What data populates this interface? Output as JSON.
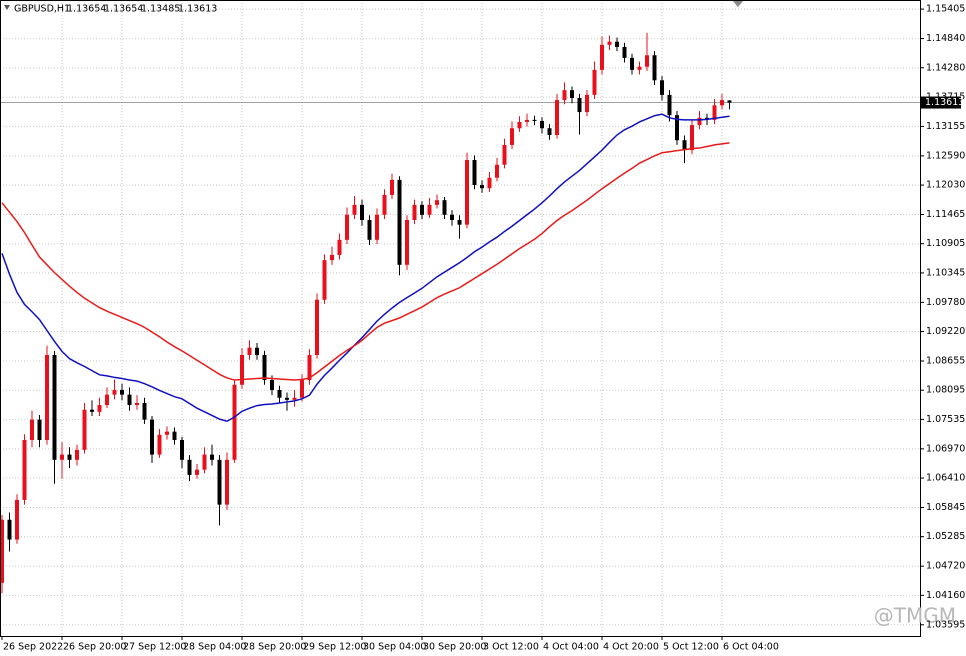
{
  "chart_data": {
    "type": "candlestick",
    "title": "GBPUSD,H1",
    "watermark": "@TMGM",
    "categories": [
      "26 Sep 2022",
      null,
      null,
      null,
      null,
      null,
      null,
      null,
      "26 Sep 20:00",
      null,
      null,
      null,
      null,
      null,
      null,
      null,
      "27 Sep 12:00",
      null,
      null,
      null,
      null,
      null,
      null,
      null,
      "28 Sep 04:00",
      null,
      null,
      null,
      null,
      null,
      null,
      null,
      "28 Sep 20:00",
      null,
      null,
      null,
      null,
      null,
      null,
      null,
      "29 Sep 12:00",
      null,
      null,
      null,
      null,
      null,
      null,
      null,
      "30 Sep 04:00",
      null,
      null,
      null,
      null,
      null,
      null,
      null,
      "30 Sep 20:00",
      null,
      null,
      null,
      null,
      null,
      null,
      null,
      "3 Oct 12:00",
      null,
      null,
      null,
      null,
      null,
      null,
      null,
      "4 Oct 04:00",
      null,
      null,
      null,
      null,
      null,
      null,
      null,
      "4 Oct 20:00",
      null,
      null,
      null,
      null,
      null,
      null,
      null,
      "5 Oct 12:00",
      null,
      null,
      null,
      null,
      null,
      null,
      null,
      "6 Oct 04:00",
      null
    ],
    "open": [
      1.044,
      1.0561,
      1.0523,
      1.0599,
      1.0714,
      1.0753,
      1.0714,
      1.0877,
      1.0676,
      1.0686,
      1.0676,
      1.0695,
      1.0772,
      1.0768,
      1.0781,
      1.0801,
      1.081,
      1.0801,
      1.0781,
      1.0785,
      1.0753,
      1.0686,
      1.0724,
      1.073,
      1.0714,
      1.0676,
      1.0647,
      1.0657,
      1.0686,
      1.0676,
      1.059,
      1.0676,
      1.082,
      1.0877,
      1.0891,
      1.0877,
      1.0829,
      1.081,
      1.0795,
      1.0791,
      1.0795,
      1.0829,
      1.0877,
      1.0983,
      1.1059,
      1.1069,
      1.1098,
      1.1146,
      1.1165,
      1.1136,
      1.1098,
      1.1146,
      1.1184,
      1.1213,
      1.105,
      1.1136,
      1.1165,
      1.1146,
      1.1165,
      1.1174,
      1.1146,
      1.1136,
      1.1127,
      1.1251,
      1.1203,
      1.1197,
      1.1217,
      1.1242,
      1.128,
      1.1312,
      1.1324,
      1.1328,
      1.1326,
      1.1312,
      1.1299,
      1.1366,
      1.1385,
      1.137,
      1.1343,
      1.1376,
      1.1424,
      1.1472,
      1.1478,
      1.1468,
      1.1447,
      1.1424,
      1.143,
      1.1452,
      1.1404,
      1.1376,
      1.1337,
      1.1289,
      1.127,
      1.1318,
      1.1332,
      1.1328,
      1.1356,
      1.13654
    ],
    "high": [
      1.057,
      1.0575,
      1.061,
      1.0725,
      1.077,
      1.0762,
      1.0895,
      1.0885,
      1.071,
      1.07,
      1.0705,
      1.0785,
      1.079,
      1.0795,
      1.0815,
      1.083,
      1.0822,
      1.0815,
      1.08,
      1.0795,
      1.076,
      1.0735,
      1.074,
      1.0738,
      1.072,
      1.0685,
      1.0668,
      1.07,
      1.0705,
      1.0685,
      1.069,
      1.083,
      1.089,
      1.0905,
      1.09,
      1.0885,
      1.0838,
      1.0818,
      1.0805,
      1.081,
      1.084,
      1.0888,
      1.0995,
      1.107,
      1.1085,
      1.111,
      1.116,
      1.1182,
      1.1175,
      1.1145,
      1.1158,
      1.1195,
      1.1225,
      1.122,
      1.1145,
      1.1175,
      1.1172,
      1.1178,
      1.1185,
      1.118,
      1.1155,
      1.1145,
      1.1265,
      1.126,
      1.1212,
      1.1228,
      1.1255,
      1.1292,
      1.1325,
      1.1335,
      1.134,
      1.1336,
      1.1333,
      1.132,
      1.1378,
      1.14,
      1.1392,
      1.1378,
      1.1385,
      1.144,
      1.1488,
      1.149,
      1.1486,
      1.1476,
      1.1455,
      1.144,
      1.1495,
      1.146,
      1.1412,
      1.1385,
      1.1345,
      1.1298,
      1.1328,
      1.1345,
      1.134,
      1.1368,
      1.1378,
      1.13654
    ],
    "low": [
      1.042,
      1.05,
      1.0515,
      1.059,
      1.07,
      1.07,
      1.0705,
      1.063,
      1.064,
      1.066,
      1.0665,
      1.0688,
      1.076,
      1.076,
      1.0775,
      1.0792,
      1.079,
      1.077,
      1.0772,
      1.0745,
      1.067,
      1.068,
      1.0715,
      1.0705,
      1.066,
      1.0635,
      1.064,
      1.065,
      1.0665,
      1.055,
      1.058,
      1.067,
      1.0812,
      1.0868,
      1.0868,
      1.082,
      1.08,
      1.0785,
      1.077,
      1.0778,
      1.0788,
      1.082,
      1.087,
      1.0975,
      1.105,
      1.106,
      1.109,
      1.1138,
      1.1125,
      1.1088,
      1.109,
      1.1138,
      1.1176,
      1.103,
      1.104,
      1.1128,
      1.1138,
      1.114,
      1.1158,
      1.1138,
      1.1125,
      1.11,
      1.112,
      1.1195,
      1.1188,
      1.119,
      1.121,
      1.1235,
      1.1272,
      1.1305,
      1.1315,
      1.1318,
      1.1302,
      1.129,
      1.1292,
      1.1358,
      1.136,
      1.13,
      1.1335,
      1.1368,
      1.1415,
      1.1462,
      1.146,
      1.1438,
      1.1415,
      1.1415,
      1.1422,
      1.1395,
      1.1365,
      1.1325,
      1.128,
      1.1245,
      1.1262,
      1.131,
      1.1318,
      1.132,
      1.1348,
      1.13485
    ],
    "close": [
      1.0561,
      1.0523,
      1.0599,
      1.0714,
      1.0753,
      1.0714,
      1.0877,
      1.0676,
      1.0686,
      1.0676,
      1.0695,
      1.0772,
      1.0768,
      1.0781,
      1.0801,
      1.081,
      1.0801,
      1.0781,
      1.0785,
      1.0753,
      1.0686,
      1.0724,
      1.073,
      1.0714,
      1.0676,
      1.0647,
      1.0657,
      1.0686,
      1.0676,
      1.059,
      1.0676,
      1.082,
      1.0877,
      1.0891,
      1.0877,
      1.0829,
      1.081,
      1.0795,
      1.0791,
      1.0795,
      1.0829,
      1.0877,
      1.0983,
      1.1059,
      1.1069,
      1.1098,
      1.1146,
      1.1165,
      1.1136,
      1.1098,
      1.1146,
      1.1184,
      1.1213,
      1.105,
      1.1136,
      1.1165,
      1.1146,
      1.1165,
      1.1174,
      1.1146,
      1.1136,
      1.1127,
      1.1251,
      1.1203,
      1.1197,
      1.1217,
      1.1242,
      1.128,
      1.1312,
      1.1324,
      1.1328,
      1.1326,
      1.1312,
      1.1299,
      1.1366,
      1.1385,
      1.137,
      1.1343,
      1.1376,
      1.1424,
      1.1472,
      1.1478,
      1.1468,
      1.1447,
      1.1424,
      1.143,
      1.1452,
      1.1404,
      1.1376,
      1.1337,
      1.1289,
      1.127,
      1.1318,
      1.1332,
      1.1328,
      1.1356,
      1.1366,
      1.13613
    ],
    "up_color": "#e8101c",
    "down_color": "#000000",
    "lines": [
      {
        "color": "#1010c0",
        "values": [
          1.1072,
          1.1032,
          1.0997,
          1.0974,
          1.096,
          1.0945,
          1.0924,
          1.0903,
          1.0884,
          1.087,
          1.0862,
          1.0855,
          1.0847,
          1.0839,
          1.0837,
          1.0834,
          1.0832,
          1.0829,
          1.0827,
          1.0822,
          1.0816,
          1.0809,
          1.0803,
          1.0797,
          1.0793,
          1.0784,
          1.0775,
          1.0768,
          1.0761,
          1.0754,
          1.075,
          1.0758,
          1.0769,
          1.0775,
          1.078,
          1.0782,
          1.0783,
          1.0785,
          1.0787,
          1.0789,
          1.0793,
          1.08,
          1.0821,
          1.0838,
          1.0852,
          1.0867,
          1.0881,
          1.0896,
          1.091,
          1.0926,
          1.0942,
          1.0955,
          1.0967,
          1.0978,
          1.0987,
          1.0996,
          1.1005,
          1.1016,
          1.1027,
          1.1036,
          1.1045,
          1.1054,
          1.1064,
          1.1075,
          1.1084,
          1.1094,
          1.1103,
          1.1114,
          1.1124,
          1.1135,
          1.1146,
          1.1157,
          1.1169,
          1.1182,
          1.1196,
          1.1209,
          1.122,
          1.1231,
          1.1244,
          1.1257,
          1.127,
          1.1285,
          1.1299,
          1.1309,
          1.1316,
          1.1324,
          1.133,
          1.1336,
          1.1339,
          1.1332,
          1.1329,
          1.1328,
          1.1328,
          1.1328,
          1.1329,
          1.1331,
          1.1333,
          1.1335
        ]
      },
      {
        "color": "#e81a1a",
        "values": [
          1.1169,
          1.1151,
          1.1133,
          1.1112,
          1.1088,
          1.1065,
          1.105,
          1.1035,
          1.1022,
          1.1009,
          1.0997,
          1.0986,
          1.0977,
          1.0968,
          1.0961,
          1.0955,
          1.0949,
          1.0943,
          1.0937,
          1.093,
          1.0921,
          1.0912,
          1.0902,
          1.0893,
          1.0885,
          1.0876,
          1.0867,
          1.0858,
          1.0849,
          1.084,
          1.0833,
          1.0829,
          1.083,
          1.0831,
          1.0832,
          1.0833,
          1.0832,
          1.0831,
          1.083,
          1.0829,
          1.083,
          1.0833,
          1.0843,
          1.0854,
          1.0865,
          1.0876,
          1.0886,
          1.0895,
          1.0905,
          1.0918,
          1.093,
          1.0938,
          1.0943,
          1.0948,
          1.0955,
          1.0962,
          1.0969,
          1.0978,
          1.0987,
          1.0994,
          1.1,
          1.1006,
          1.1015,
          1.1024,
          1.1033,
          1.1042,
          1.1051,
          1.1061,
          1.1071,
          1.1081,
          1.109,
          1.1099,
          1.111,
          1.1123,
          1.1135,
          1.1145,
          1.1154,
          1.1164,
          1.1174,
          1.1185,
          1.1196,
          1.1206,
          1.1216,
          1.1226,
          1.1235,
          1.1245,
          1.1252,
          1.1259,
          1.1265,
          1.1267,
          1.1269,
          1.1271,
          1.1273,
          1.1274,
          1.1277,
          1.128,
          1.1282,
          1.1284
        ]
      }
    ],
    "ylim": [
      1.0338,
      1.1558
    ],
    "yticks": [
      1.15405,
      {
        "value": 1.1484,
        "label": "1.14840"
      },
      {
        "value": 1.1428,
        "label": "1.14280"
      },
      1.13715,
      1.13155,
      {
        "value": 1.1259,
        "label": "1.12590"
      },
      {
        "value": 1.1203,
        "label": "1.12030"
      },
      1.11465,
      1.10905,
      1.10345,
      {
        "value": 1.0978,
        "label": "1.09780"
      },
      {
        "value": 1.0922,
        "label": "1.09220"
      },
      1.08655,
      1.08095,
      1.07535,
      {
        "value": 1.0697,
        "label": "1.06970"
      },
      {
        "value": 1.0641,
        "label": "1.06410"
      },
      1.05845,
      1.05285,
      {
        "value": 1.0472,
        "label": "1.04720"
      },
      {
        "value": 1.0416,
        "label": "1.04160"
      },
      1.03595
    ],
    "grid": true
  }
}
